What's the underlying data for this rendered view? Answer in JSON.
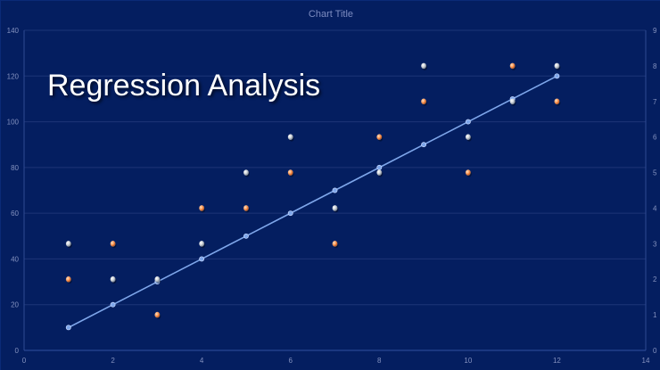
{
  "chart_data": {
    "type": "scatter",
    "title": "Chart Title",
    "overlay_title": "Regression Analysis",
    "xlabel": "",
    "ylabel": "",
    "xlim": [
      0,
      14
    ],
    "ylim": [
      0,
      140
    ],
    "y2lim": [
      0,
      9
    ],
    "xticks": [
      0,
      2,
      4,
      6,
      8,
      10,
      12,
      14
    ],
    "yticks": [
      0,
      20,
      40,
      60,
      80,
      100,
      120,
      140
    ],
    "y2ticks": [
      0,
      1,
      2,
      3,
      4,
      5,
      6,
      7,
      8,
      9
    ],
    "grid": true,
    "legend": "none",
    "series": [
      {
        "kind": "line",
        "axis": "left",
        "color": "#7ea6ea",
        "points": [
          [
            1,
            10
          ],
          [
            2,
            20
          ],
          [
            3,
            30
          ],
          [
            4,
            40
          ],
          [
            5,
            50
          ],
          [
            6,
            60
          ],
          [
            7,
            70
          ],
          [
            8,
            80
          ],
          [
            9,
            90
          ],
          [
            10,
            100
          ],
          [
            11,
            110
          ],
          [
            12,
            120
          ]
        ]
      },
      {
        "kind": "scatter",
        "axis": "right",
        "color": "#ff9a57",
        "points": [
          [
            1,
            2
          ],
          [
            2,
            3
          ],
          [
            3,
            1
          ],
          [
            4,
            4
          ],
          [
            5,
            4
          ],
          [
            6,
            5
          ],
          [
            7,
            3
          ],
          [
            8,
            6
          ],
          [
            9,
            7
          ],
          [
            10,
            5
          ],
          [
            11,
            8
          ],
          [
            12,
            7
          ]
        ]
      },
      {
        "kind": "scatter",
        "axis": "right",
        "color": "#d9dde3",
        "points": [
          [
            1,
            3
          ],
          [
            2,
            2
          ],
          [
            3,
            2
          ],
          [
            4,
            3
          ],
          [
            5,
            5
          ],
          [
            6,
            6
          ],
          [
            7,
            4
          ],
          [
            8,
            5
          ],
          [
            9,
            8
          ],
          [
            10,
            6
          ],
          [
            11,
            7
          ],
          [
            12,
            8
          ]
        ]
      }
    ]
  }
}
